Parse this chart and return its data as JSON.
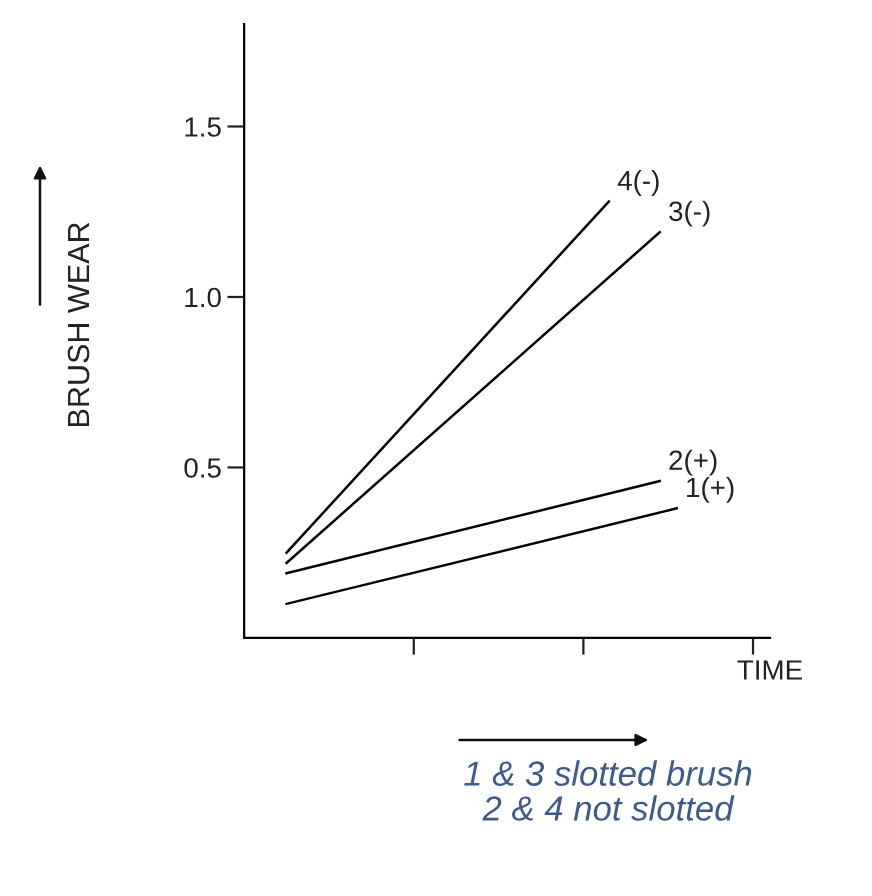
{
  "chart_data": {
    "type": "line",
    "ylabel": "BRUSH WEAR",
    "xlabel": "TIME",
    "categories": [
      null,
      null,
      null,
      null,
      null,
      null,
      null,
      null,
      null,
      null,
      null,
      null,
      null,
      null,
      null,
      null,
      null,
      null,
      null,
      null,
      null,
      null,
      null,
      null,
      null,
      null,
      null,
      null,
      null,
      null,
      null
    ],
    "ylim": [
      0,
      1.8
    ],
    "yticks": [
      0.5,
      {
        "value": 1.0,
        "label": "1.0"
      },
      1.5
    ],
    "tick_labels": "y",
    "grid": false,
    "legend": false,
    "marker": "none",
    "line_style": "solid",
    "series": [
      {
        "name": "4(-)",
        "color": "#000000",
        "values": [
          null,
          null,
          0.25,
          null,
          null,
          null,
          null,
          null,
          null,
          null,
          null,
          null,
          null,
          null,
          null,
          null,
          null,
          null,
          null,
          null,
          null,
          1.28,
          null,
          null,
          null,
          null,
          null,
          null,
          null,
          null,
          null
        ]
      },
      {
        "name": "3(-)",
        "color": "#000000",
        "values": [
          null,
          null,
          0.22,
          null,
          null,
          null,
          null,
          null,
          null,
          null,
          null,
          null,
          null,
          null,
          null,
          null,
          null,
          null,
          null,
          null,
          null,
          null,
          null,
          null,
          1.19,
          null,
          null,
          null,
          null,
          null,
          null
        ]
      },
      {
        "name": "2(+)",
        "color": "#000000",
        "values": [
          null,
          null,
          0.19,
          null,
          null,
          null,
          null,
          null,
          null,
          null,
          null,
          null,
          null,
          null,
          null,
          null,
          null,
          null,
          null,
          null,
          null,
          null,
          null,
          null,
          0.46,
          null,
          null,
          null,
          null,
          null,
          null
        ]
      },
      {
        "name": "1(+)",
        "color": "#000000",
        "values": [
          null,
          null,
          0.1,
          null,
          null,
          null,
          null,
          null,
          null,
          null,
          null,
          null,
          null,
          null,
          null,
          null,
          null,
          null,
          null,
          null,
          null,
          null,
          null,
          null,
          null,
          0.38,
          null,
          null,
          null,
          null,
          null
        ]
      }
    ],
    "annotations": [
      "1 & 3 slotted brush\n2 & 4 not slotted"
    ]
  }
}
